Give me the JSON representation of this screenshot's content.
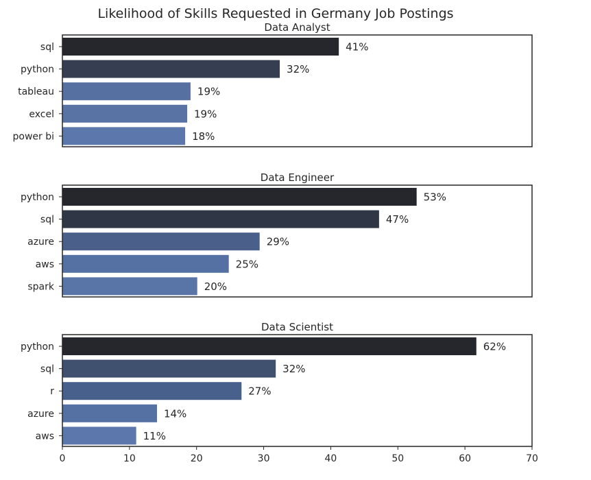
{
  "title": "Likelihood of Skills Requested in Germany Job Postings",
  "chart_data": [
    {
      "type": "bar",
      "orientation": "horizontal",
      "title": "Data Analyst",
      "xlabel": "",
      "ylabel": "",
      "xlim": [
        0,
        70
      ],
      "categories": [
        "sql",
        "python",
        "tableau",
        "excel",
        "power bi"
      ],
      "values": [
        41.2,
        32.4,
        19.1,
        18.6,
        18.3
      ],
      "data_labels": [
        "41%",
        "32%",
        "19%",
        "19%",
        "18%"
      ],
      "colors": [
        "#25272c",
        "#353f51",
        "#5671a1",
        "#5973a5",
        "#5b77ab"
      ],
      "x_ticks_shown": false
    },
    {
      "type": "bar",
      "orientation": "horizontal",
      "title": "Data Engineer",
      "xlabel": "",
      "ylabel": "",
      "xlim": [
        0,
        70
      ],
      "categories": [
        "python",
        "sql",
        "azure",
        "aws",
        "spark"
      ],
      "values": [
        52.8,
        47.2,
        29.4,
        24.8,
        20.1
      ],
      "data_labels": [
        "53%",
        "47%",
        "29%",
        "25%",
        "20%"
      ],
      "colors": [
        "#25272c",
        "#2f3746",
        "#4a5f8a",
        "#5068988",
        "#5975a8"
      ],
      "x_ticks_shown": false
    },
    {
      "type": "bar",
      "orientation": "horizontal",
      "title": "Data Scientist",
      "xlabel": "",
      "ylabel": "",
      "xlim": [
        0,
        70
      ],
      "categories": [
        "python",
        "sql",
        "r",
        "azure",
        "aws"
      ],
      "values": [
        61.7,
        31.8,
        26.7,
        14.1,
        11.0
      ],
      "data_labels": [
        "62%",
        "32%",
        "27%",
        "14%",
        "11%"
      ],
      "colors": [
        "#25272c",
        "#40506f",
        "#48608c",
        "#5570a3",
        "#5b77ab"
      ],
      "x_ticks_shown": true,
      "x_ticks": [
        0,
        10,
        20,
        30,
        40,
        50,
        60,
        70
      ]
    }
  ]
}
